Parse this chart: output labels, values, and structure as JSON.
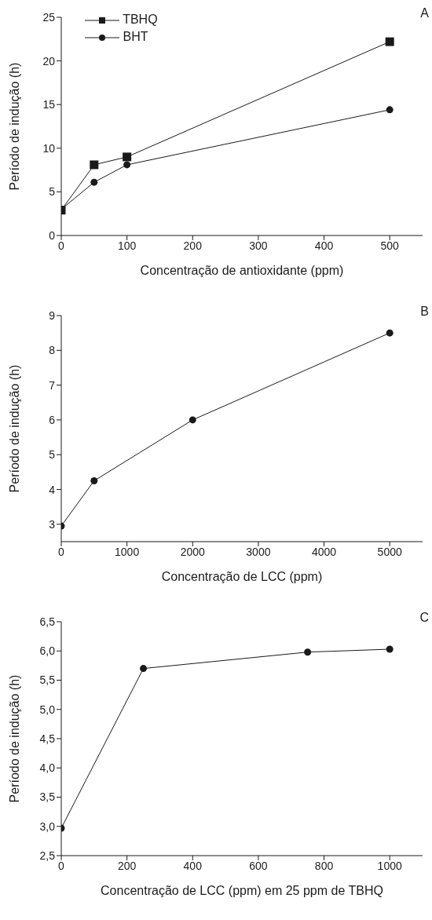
{
  "chart_data": [
    {
      "type": "line",
      "xlabel": "Concentração de antioxidante (ppm)",
      "ylabel": "Período de indução (h)",
      "annotations": [
        "A"
      ],
      "xlim": [
        0,
        550
      ],
      "xticks": [
        0,
        100,
        200,
        300,
        400,
        500
      ],
      "ylim": [
        0,
        25
      ],
      "yticks": [
        0,
        5,
        10,
        15,
        20,
        25
      ],
      "grid": false,
      "legend": "top left",
      "line_style": "solid",
      "series": [
        {
          "name": "TBHQ",
          "color": "#1a1a1a",
          "marker": "square",
          "x": [
            0,
            50,
            100,
            500
          ],
          "values": [
            2.9,
            8.1,
            9.0,
            22.2
          ]
        },
        {
          "name": "BHT",
          "color": "#1a1a1a",
          "marker": "circle",
          "x": [
            0,
            50,
            100,
            500
          ],
          "values": [
            3.0,
            6.1,
            8.1,
            14.4
          ]
        }
      ]
    },
    {
      "type": "line",
      "xlabel": "Concentração de LCC (ppm)",
      "ylabel": "Período de indução (h)",
      "annotations": [
        "B"
      ],
      "xlim": [
        0,
        5500
      ],
      "xticks": [
        0,
        1000,
        2000,
        3000,
        4000,
        5000
      ],
      "ylim": [
        2.5,
        9
      ],
      "yticks": [
        3,
        4,
        5,
        6,
        7,
        8,
        9
      ],
      "grid": false,
      "legend": false,
      "marker": "circle",
      "line_style": "solid",
      "series": [
        {
          "color": "#1a1a1a",
          "x": [
            0,
            500,
            2000,
            5000
          ],
          "values": [
            2.95,
            4.25,
            6.0,
            8.5
          ]
        }
      ]
    },
    {
      "type": "line",
      "xlabel": "Concentração de LCC (ppm) em 25 ppm de TBHQ",
      "ylabel": "Período de indução (h)",
      "annotations": [
        "C"
      ],
      "xlim": [
        0,
        1100
      ],
      "xticks": [
        0,
        200,
        400,
        600,
        800,
        1000
      ],
      "ylim": [
        2.5,
        6.5
      ],
      "yticks": [
        {
          "value": 2.5,
          "label": "2,5"
        },
        {
          "value": 3.0,
          "label": "3,0"
        },
        {
          "value": 3.5,
          "label": "3,5"
        },
        {
          "value": 4.0,
          "label": "4,0"
        },
        {
          "value": 4.5,
          "label": "4,5"
        },
        {
          "value": 5.0,
          "label": "5,0"
        },
        {
          "value": 5.5,
          "label": "5,5"
        },
        {
          "value": 6.0,
          "label": "6,0"
        },
        {
          "value": 6.5,
          "label": "6,5"
        }
      ],
      "grid": false,
      "legend": false,
      "marker": "circle",
      "line_style": "solid",
      "series": [
        {
          "color": "#1a1a1a",
          "x": [
            0,
            250,
            750,
            1000
          ],
          "values": [
            2.97,
            5.7,
            5.98,
            6.03
          ]
        }
      ]
    }
  ]
}
